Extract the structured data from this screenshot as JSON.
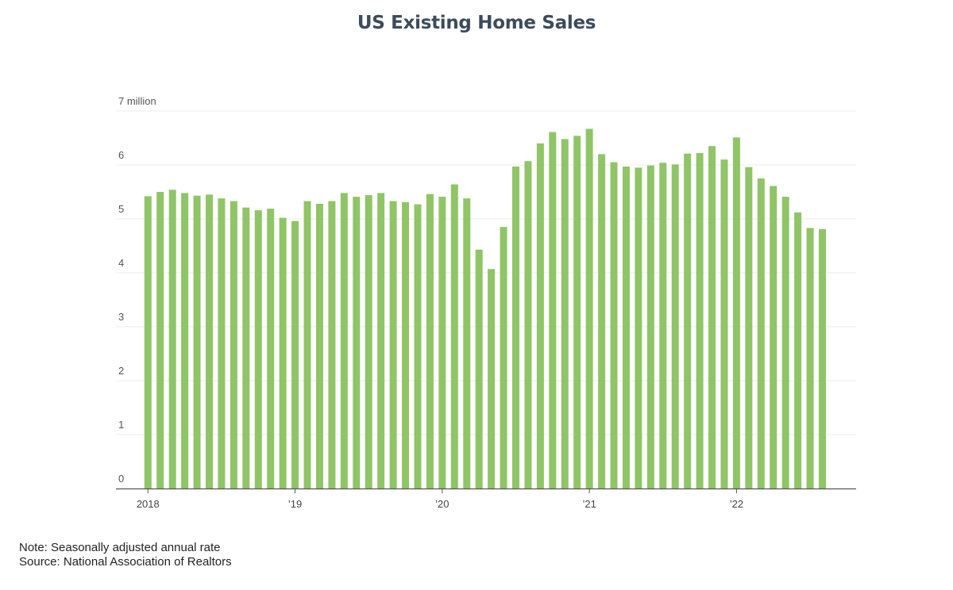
{
  "chart_data": {
    "type": "bar",
    "title": "US Existing Home Sales",
    "y_unit_label": "7 million",
    "ylim": [
      0,
      7
    ],
    "y_ticks": [
      {
        "value": 0,
        "label": "0"
      },
      {
        "value": 1,
        "label": "1"
      },
      {
        "value": 2,
        "label": "2"
      },
      {
        "value": 3,
        "label": "3"
      },
      {
        "value": 4,
        "label": "4"
      },
      {
        "value": 5,
        "label": "5"
      },
      {
        "value": 6,
        "label": "6"
      },
      {
        "value": 7,
        "label": "7 million"
      }
    ],
    "x_ticks": [
      {
        "date": "2018-01",
        "label": "2018"
      },
      {
        "date": "2019-01",
        "label": "’19"
      },
      {
        "date": "2020-01",
        "label": "’20"
      },
      {
        "date": "2021-01",
        "label": "’21"
      },
      {
        "date": "2022-01",
        "label": "’22"
      }
    ],
    "grid": true,
    "bar_color": "#8fc566",
    "categories": [
      "2018-01",
      "2018-02",
      "2018-03",
      "2018-04",
      "2018-05",
      "2018-06",
      "2018-07",
      "2018-08",
      "2018-09",
      "2018-10",
      "2018-11",
      "2018-12",
      "2019-01",
      "2019-02",
      "2019-03",
      "2019-04",
      "2019-05",
      "2019-06",
      "2019-07",
      "2019-08",
      "2019-09",
      "2019-10",
      "2019-11",
      "2019-12",
      "2020-01",
      "2020-02",
      "2020-03",
      "2020-04",
      "2020-05",
      "2020-06",
      "2020-07",
      "2020-08",
      "2020-09",
      "2020-10",
      "2020-11",
      "2020-12",
      "2021-01",
      "2021-02",
      "2021-03",
      "2021-04",
      "2021-05",
      "2021-06",
      "2021-07",
      "2021-08",
      "2021-09",
      "2021-10",
      "2021-11",
      "2021-12",
      "2022-01",
      "2022-02",
      "2022-03",
      "2022-04",
      "2022-05",
      "2022-06",
      "2022-07",
      "2022-08"
    ],
    "values": [
      5.42,
      5.5,
      5.54,
      5.48,
      5.43,
      5.45,
      5.38,
      5.33,
      5.21,
      5.16,
      5.19,
      5.02,
      4.96,
      5.33,
      5.28,
      5.33,
      5.48,
      5.41,
      5.44,
      5.48,
      5.33,
      5.31,
      5.27,
      5.46,
      5.41,
      5.64,
      5.38,
      4.43,
      4.07,
      4.85,
      5.97,
      6.07,
      6.4,
      6.61,
      6.48,
      6.54,
      6.67,
      6.2,
      6.05,
      5.97,
      5.95,
      5.99,
      6.04,
      6.01,
      6.21,
      6.22,
      6.35,
      6.1,
      6.51,
      5.96,
      5.75,
      5.61,
      5.41,
      5.12,
      4.83,
      4.81
    ]
  },
  "notes": {
    "line1": "Note: Seasonally adjusted annual rate",
    "line2": "Source: National Association of Realtors"
  }
}
